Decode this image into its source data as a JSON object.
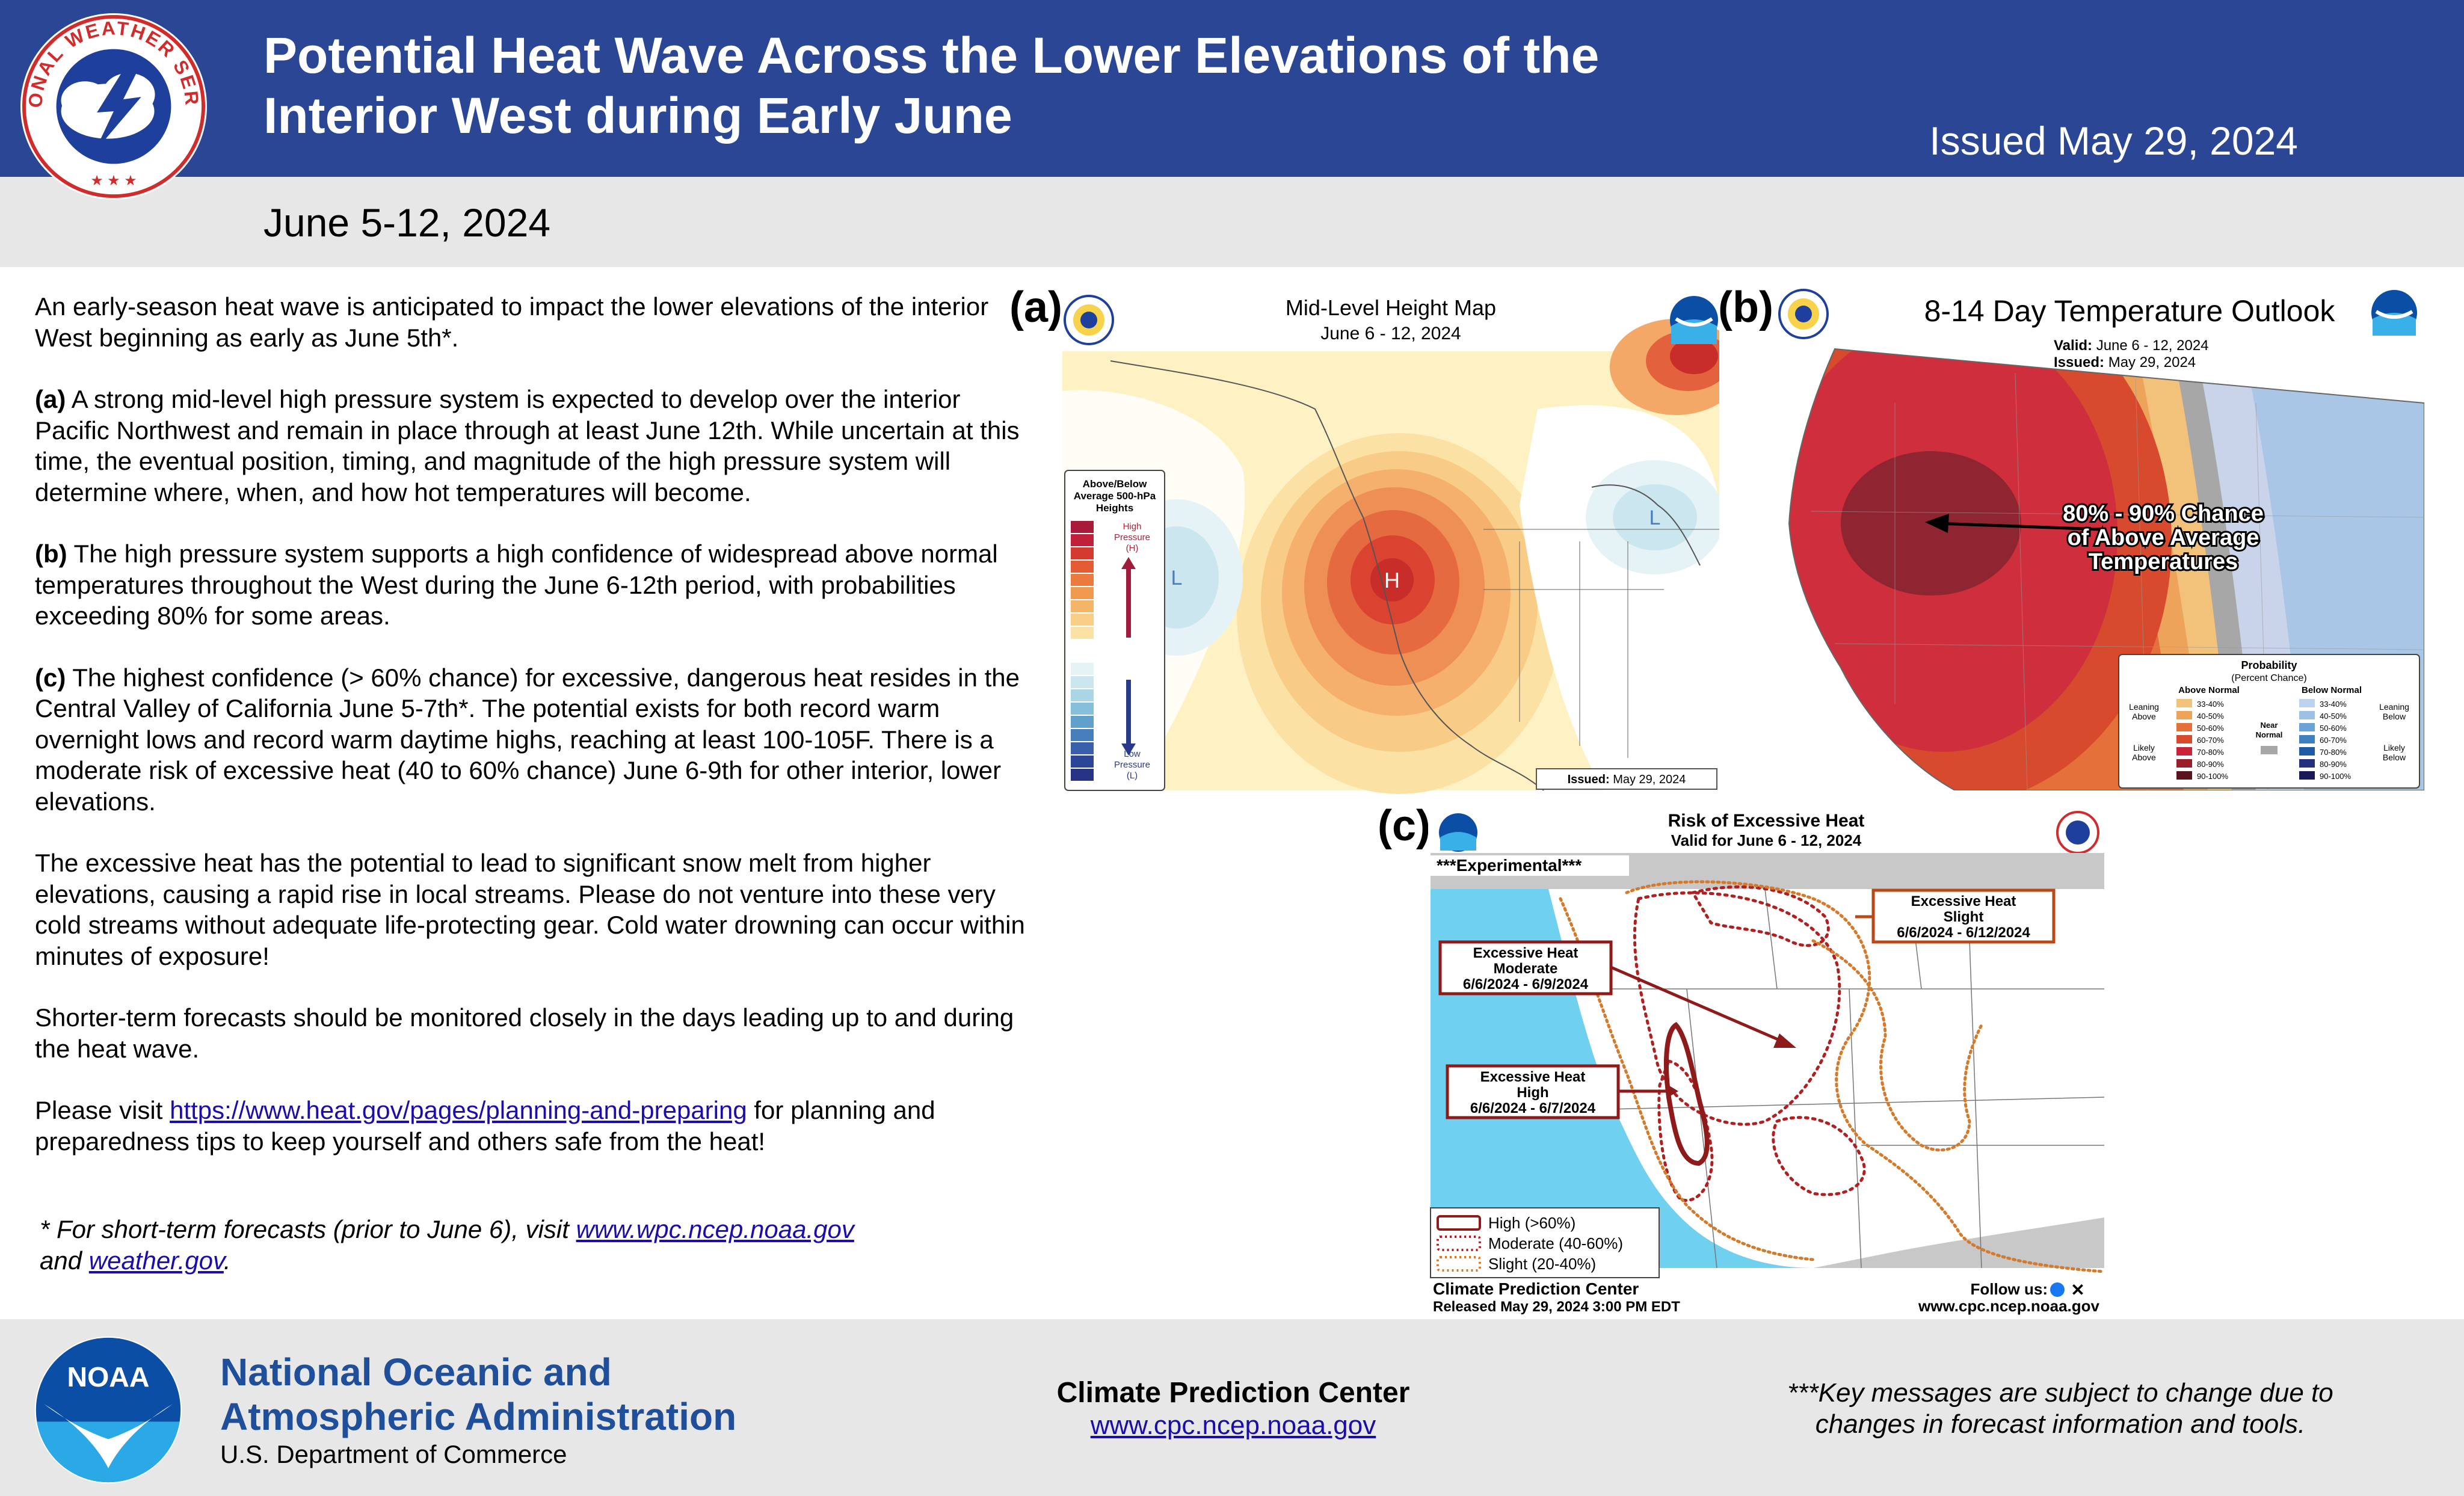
{
  "header": {
    "title_line1": "Potential Heat Wave Across the Lower Elevations of the",
    "title_line2": "Interior West during Early June",
    "issued": "Issued May 29, 2024",
    "dates": "June 5-12, 2024",
    "nws_logo_text": "NATIONAL WEATHER SERVICE"
  },
  "body": {
    "p1": "An early-season heat wave is anticipated to impact the lower elevations of the interior West beginning as early as June 5th*.",
    "p2_label": "(a)",
    "p2": " A strong mid-level high pressure system is expected to develop over the interior Pacific Northwest and remain in place through at least June 12th. While uncertain at this time, the eventual position, timing, and magnitude of the high pressure system will determine where, when, and how hot temperatures will become.",
    "p3_label": "(b)",
    "p3": " The high pressure system supports a high confidence of widespread above normal temperatures throughout the West during the June 6-12th period, with probabilities exceeding 80% for some areas.",
    "p4_label": "(c)",
    "p4": " The highest confidence (> 60% chance) for excessive, dangerous heat resides in the Central Valley of California June 5-7th*. The potential exists for both record warm overnight lows and record warm daytime highs, reaching at least 100-105F. There is a moderate risk of excessive heat (40 to 60% chance) June 6-9th for other interior, lower elevations.",
    "p5": "The excessive heat has the potential to lead to significant snow melt from higher elevations, causing a rapid rise in local streams. Please do not venture into these very cold streams without adequate life-protecting gear. Cold water drowning can occur within minutes of exposure!",
    "p6": "Shorter-term forecasts should be monitored closely in the days leading up to and during the heat wave.",
    "p7_pre": "Please visit ",
    "p7_link": "https://www.heat.gov/pages/planning-and-preparing",
    "p7_post": " for planning and preparedness tips to keep yourself and others safe from the heat!",
    "footnote_pre": "* For short-term forecasts (prior to June 6), visit ",
    "footnote_link1": "www.wpc.ncep.noaa.gov",
    "footnote_mid": "and ",
    "footnote_link2": "weather.gov",
    "footnote_post": "."
  },
  "panel_a": {
    "letter": "(a)",
    "title": "Mid-Level Height Map",
    "subtitle": "June 6 - 12, 2024",
    "legend_title1": "Above/Below",
    "legend_title2": "Average 500-hPa",
    "legend_title3": "Heights",
    "high_label1": "High",
    "high_label2": "Pressure",
    "high_label3": "(H)",
    "low_label1": "Low",
    "low_label2": "Pressure",
    "low_label3": "(L)",
    "h_marker": "H",
    "l_marker_west": "L",
    "l_marker_east": "L",
    "issued_label": "Issued:",
    "issued_date": "May 29, 2024"
  },
  "panel_b": {
    "letter": "(b)",
    "title": "8-14 Day Temperature Outlook",
    "valid_label": "Valid:",
    "valid_value": "June 6 - 12, 2024",
    "issued_label": "Issued:",
    "issued_value": "May 29, 2024",
    "annotation1": "80% - 90% Chance",
    "annotation2": "of Above Average",
    "annotation3": "Temperatures",
    "legend_title": "Probability",
    "legend_subtitle": "(Percent Chance)",
    "above_normal": "Above Normal",
    "below_normal": "Below Normal",
    "near_normal1": "Near",
    "near_normal2": "Normal",
    "leaning_above1": "Leaning",
    "leaning_above2": "Above",
    "likely_above1": "Likely",
    "likely_above2": "Above",
    "leaning_below1": "Leaning",
    "leaning_below2": "Below",
    "likely_below1": "Likely",
    "likely_below2": "Below",
    "ranges": [
      "33-40%",
      "40-50%",
      "50-60%",
      "60-70%",
      "70-80%",
      "80-90%",
      "90-100%"
    ],
    "above_colors": [
      "#f2c27a",
      "#eea35a",
      "#e4713a",
      "#d84a2e",
      "#c9243a",
      "#9a1e2a",
      "#5c1320"
    ],
    "below_colors": [
      "#bcd2ee",
      "#9cc1e6",
      "#6aa3d6",
      "#3d7fc1",
      "#1d5ba6",
      "#26307e",
      "#1a1a5a"
    ]
  },
  "panel_c": {
    "letter": "(c)",
    "title": "Risk of Excessive Heat",
    "subtitle": "Valid for June 6 - 12, 2024",
    "experimental": "***Experimental***",
    "box_slight1": "Excessive Heat",
    "box_slight2": "Slight",
    "box_slight3": "6/6/2024 - 6/12/2024",
    "box_moderate1": "Excessive Heat",
    "box_moderate2": "Moderate",
    "box_moderate3": "6/6/2024 - 6/9/2024",
    "box_high1": "Excessive Heat",
    "box_high2": "High",
    "box_high3": "6/6/2024 - 6/7/2024",
    "legend_high": "High (>60%)",
    "legend_moderate": "Moderate (40-60%)",
    "legend_slight": "Slight (20-40%)",
    "cpc": "Climate Prediction Center",
    "follow": "Follow us:",
    "released": "Released May 29, 2024 3:00 PM EDT",
    "url": "www.cpc.ncep.noaa.gov"
  },
  "footer": {
    "noaa_name1": "National Oceanic and",
    "noaa_name2": "Atmospheric Administration",
    "department": "U.S. Department of Commerce",
    "cpc_name": "Climate Prediction Center",
    "cpc_url": "www.cpc.ncep.noaa.gov",
    "disclaimer1": "***Key messages are subject to change due to",
    "disclaimer2": "changes in forecast information and tools.",
    "noaa_logo_text": "NOAA"
  },
  "colors": {
    "header_blue": "#2a4694",
    "subbar_gray": "#e7e7e7",
    "noaa_blue": "#1f4e9a",
    "link_blue": "#1a0dab"
  }
}
